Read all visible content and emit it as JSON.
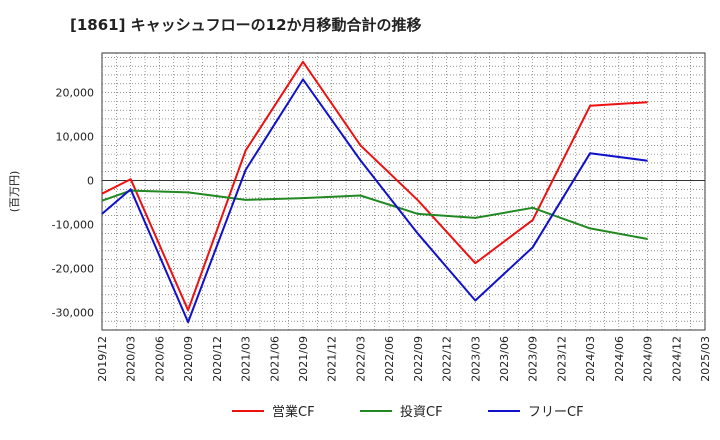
{
  "chart_data": {
    "type": "line",
    "title": "[1861]  キャッシュフローの12か月移動合計の推移",
    "ylabel": "(百万円)",
    "xlabel": "",
    "x": [
      "2019/12",
      "2020/03",
      "2020/06",
      "2020/09",
      "2020/12",
      "2021/03",
      "2021/06",
      "2021/09",
      "2021/12",
      "2022/03",
      "2022/06",
      "2022/09",
      "2022/12",
      "2023/03",
      "2023/06",
      "2023/09",
      "2023/12",
      "2024/03",
      "2024/06",
      "2024/09",
      "2024/12",
      "2025/03"
    ],
    "ylim": [
      -34000,
      29000
    ],
    "yticks": [
      20000,
      10000,
      0,
      -10000,
      -20000,
      -30000
    ],
    "ytick_labels": [
      "20,000",
      "10,000",
      "0",
      "-10,000",
      "-20,000",
      "-30,000"
    ],
    "grid": true,
    "legend_position": "bottom",
    "series": [
      {
        "name": "営業CF",
        "color": "#ee1111",
        "values": [
          -3000,
          300,
          null,
          -29500,
          null,
          6800,
          null,
          27000,
          null,
          8000,
          null,
          -4500,
          null,
          -18800,
          null,
          -9000,
          null,
          17000,
          null,
          17800,
          null,
          null
        ]
      },
      {
        "name": "投資CF",
        "color": "#228822",
        "values": [
          -4600,
          -2300,
          null,
          -2700,
          null,
          -4400,
          null,
          -4000,
          null,
          -3400,
          null,
          -7600,
          null,
          -8500,
          null,
          -6200,
          null,
          -10900,
          null,
          -13300,
          null,
          null
        ]
      },
      {
        "name": "フリーCF",
        "color": "#1111cc",
        "values": [
          -7600,
          -2000,
          null,
          -32200,
          null,
          2400,
          null,
          23000,
          null,
          4600,
          null,
          -12100,
          null,
          -27300,
          null,
          -15200,
          null,
          6200,
          null,
          4500,
          null,
          null
        ]
      }
    ]
  }
}
